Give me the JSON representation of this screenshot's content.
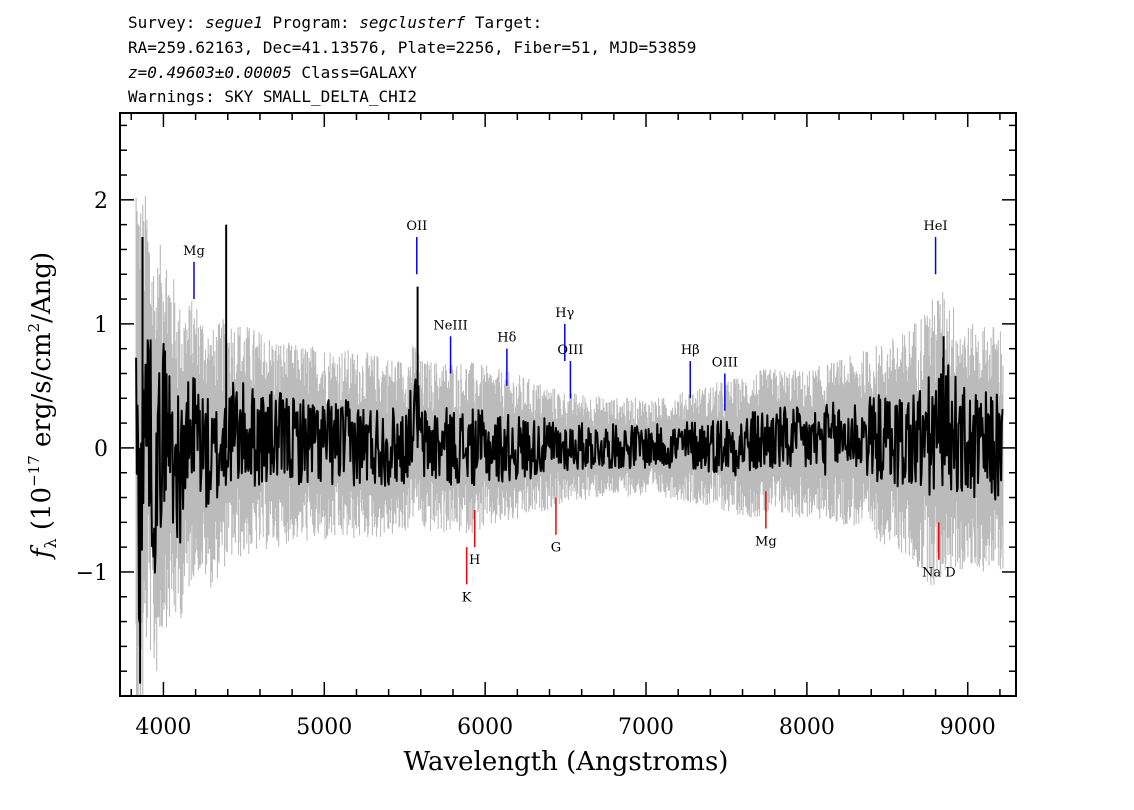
{
  "header": {
    "survey_label": "Survey:",
    "survey": "segue1",
    "program_label": "Program:",
    "program": "segclusterf",
    "target_label": "Target:",
    "line2": "RA=259.62163, Dec=41.13576, Plate=2256, Fiber=51, MJD=53859",
    "redshift": "z=0.49603±0.00005",
    "class": "Class=GALAXY",
    "warnings": "Warnings: SKY SMALL_DELTA_CHI2"
  },
  "chart_data": {
    "type": "line",
    "title": "",
    "xlabel": "Wavelength (Angstroms)",
    "ylabel": "f_λ (10^-17 erg/s/cm^2/Ang)",
    "xlim": [
      3730,
      9300
    ],
    "ylim": [
      -2.0,
      2.7
    ],
    "x_ticks": [
      4000,
      5000,
      6000,
      7000,
      8000,
      9000
    ],
    "y_ticks": [
      -1,
      0,
      1,
      2
    ],
    "x_tick_labels": [
      "4000",
      "5000",
      "6000",
      "7000",
      "8000",
      "9000"
    ],
    "y_tick_labels": [
      "−1",
      "0",
      "1",
      "2"
    ],
    "series": [
      {
        "role": "noise band (gray)",
        "color": "#bbbbbb",
        "x": [
          3830,
          3900,
          4000,
          4100,
          4200,
          4400,
          4600,
          4800,
          5000,
          5300,
          5600,
          5900,
          6200,
          6500,
          6800,
          7100,
          7400,
          7700,
          8000,
          8300,
          8600,
          8800,
          9000,
          9220
        ],
        "values": [
          2.6,
          1.8,
          1.6,
          1.3,
          1.1,
          1.0,
          0.9,
          0.8,
          0.8,
          0.75,
          0.7,
          0.7,
          0.6,
          0.45,
          0.4,
          0.4,
          0.5,
          0.6,
          0.6,
          0.7,
          0.9,
          1.2,
          1.0,
          1.0
        ]
      },
      {
        "role": "flux (black)",
        "color": "#000000",
        "x": [
          3830,
          3850,
          3900,
          3950,
          4000,
          4100,
          4200,
          4300,
          4400,
          4500,
          4700,
          5000,
          5300,
          5500,
          5580,
          5600,
          5800,
          6000,
          6200,
          6500,
          6800,
          7100,
          7300,
          7600,
          7800,
          8000,
          8300,
          8600,
          8800,
          8850,
          9000,
          9200
        ],
        "values": [
          0.0,
          -1.9,
          1.7,
          -1.5,
          1.0,
          -0.8,
          0.7,
          -0.6,
          0.5,
          0.4,
          0.3,
          0.2,
          0.1,
          0.05,
          1.3,
          0.1,
          0.05,
          0.0,
          0.0,
          0.05,
          0.05,
          0.05,
          0.1,
          0.1,
          0.3,
          0.2,
          0.4,
          0.2,
          0.3,
          0.9,
          0.0,
          0.0
        ]
      }
    ],
    "emission_lines": [
      {
        "name": "Mg",
        "x": 4190,
        "y1": 1.2,
        "y2": 1.5,
        "color": "#0000ff"
      },
      {
        "name": "OII",
        "x": 5575,
        "y1": 1.4,
        "y2": 1.7,
        "color": "#0000ff"
      },
      {
        "name": "NeIII",
        "x": 5785,
        "y1": 0.6,
        "y2": 0.9,
        "color": "#0000ff"
      },
      {
        "name": "Hδ",
        "x": 6135,
        "y1": 0.5,
        "y2": 0.8,
        "color": "#0000ff"
      },
      {
        "name": "Hγ",
        "x": 6495,
        "y1": 0.7,
        "y2": 1.0,
        "color": "#0000ff"
      },
      {
        "name": "OIII",
        "x": 6530,
        "y1": 0.4,
        "y2": 0.7,
        "color": "#0000ff"
      },
      {
        "name": "Hβ",
        "x": 7275,
        "y1": 0.4,
        "y2": 0.7,
        "color": "#0000ff"
      },
      {
        "name": "OIII",
        "x": 7490,
        "y1": 0.3,
        "y2": 0.6,
        "color": "#0000ff"
      },
      {
        "name": "HeI",
        "x": 8800,
        "y1": 1.4,
        "y2": 1.7,
        "color": "#0000ff"
      }
    ],
    "absorption_lines": [
      {
        "name": "K",
        "x": 5885,
        "y1": -0.8,
        "y2": -1.1,
        "color": "#ff0000"
      },
      {
        "name": "H",
        "x": 5935,
        "y1": -0.5,
        "y2": -0.8,
        "color": "#ff0000"
      },
      {
        "name": "G",
        "x": 6440,
        "y1": -0.4,
        "y2": -0.7,
        "color": "#ff0000"
      },
      {
        "name": "Mg",
        "x": 7745,
        "y1": -0.35,
        "y2": -0.65,
        "color": "#ff0000"
      },
      {
        "name": "Na D",
        "x": 8820,
        "y1": -0.6,
        "y2": -0.9,
        "color": "#ff0000"
      }
    ]
  }
}
